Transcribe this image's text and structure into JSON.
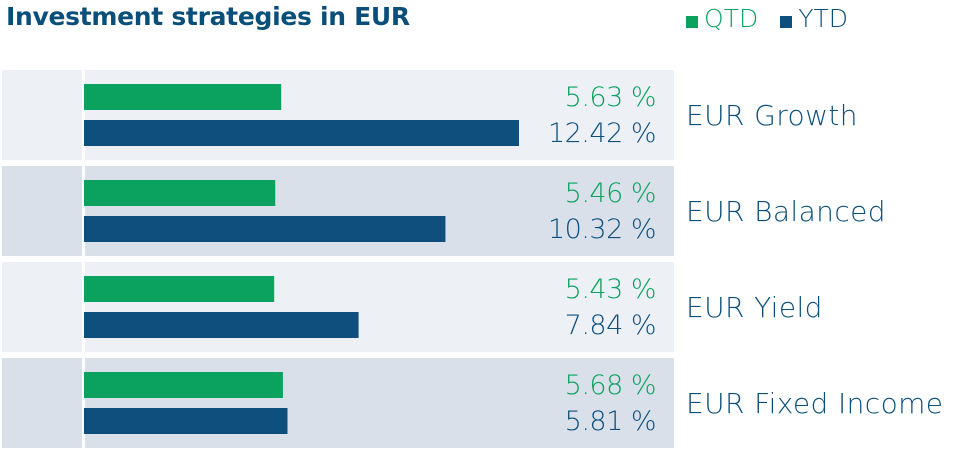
{
  "chart_data": {
    "type": "bar",
    "title": "Investment strategies in EUR",
    "categories": [
      "EUR Growth",
      "EUR Balanced",
      "EUR Yield",
      "EUR Fixed Income"
    ],
    "series": [
      {
        "name": "QTD",
        "values": [
          5.63,
          5.46,
          5.43,
          5.68
        ],
        "labels": [
          "5.63 %",
          "5.46 %",
          "5.43 %",
          "5.68 %"
        ]
      },
      {
        "name": "YTD",
        "values": [
          12.42,
          10.32,
          7.84,
          5.81
        ],
        "labels": [
          "12.42 %",
          "10.32 %",
          "7.84 %",
          "5.81 %"
        ]
      }
    ],
    "xlim": [
      0,
      14
    ],
    "orientation": "horizontal",
    "legend_position": "top-right",
    "colors": {
      "QTD": "#0aa25e",
      "YTD": "#0e4f7e",
      "title": "#0a4f7a",
      "row_light": "#edf0f5",
      "row_dark": "#d9e0ea",
      "category_text": "#0a4f7a"
    }
  }
}
